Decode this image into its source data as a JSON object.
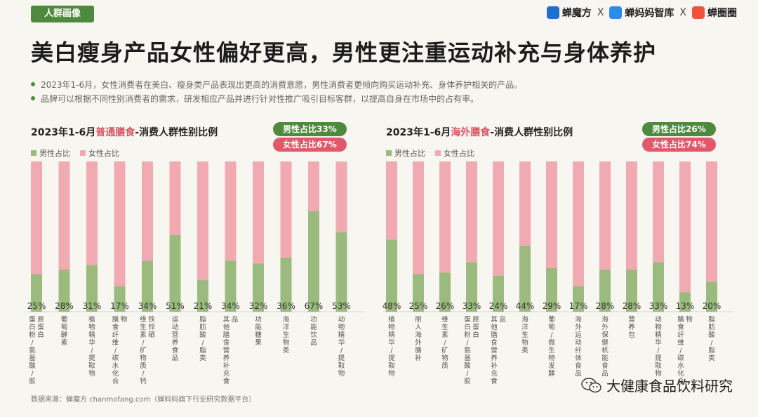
{
  "tag": "人群画像",
  "brands": [
    "蝉魔方",
    "蝉妈妈智库",
    "蝉圈圈"
  ],
  "brand_sep": "X",
  "title": "美白瘦身产品女性偏好更高，男性更注重运动补充与身体养护",
  "bullets": [
    "2023年1-6月，女性消费者在美白、瘦身类产品表现出更高的消费意愿，男性消费者更倾向购买运动补充、身体养护相关的产品。",
    "品牌可以根据不同性别消费者的需求，研发相应产品并进行针对性推广吸引目标客群，以提高自身在市场中的占有率。"
  ],
  "source": "数据来源：蝉魔方 chanmofang.com（蝉妈妈旗下行业研究数据平台）",
  "watermark": "大健康食品饮料研究",
  "colors": {
    "male": "#9bba7d",
    "female": "#f2aab2",
    "accent": "#4e8a3d",
    "pink": "#e0586a"
  },
  "chart_data": [
    {
      "type": "bar",
      "stacked": true,
      "title_prefix": "2023年1-6月",
      "title_highlight": "普通膳食",
      "title_suffix": "-消费人群性别比例",
      "male_pill": "男性占比33%",
      "female_pill": "女性占比67%",
      "legend": [
        "男性占比",
        "女性占比"
      ],
      "categories": [
        "蛋白粉/氨基酸/胶原蛋白",
        "葡萄酵素",
        "植物精华/提取物",
        "膳食纤维/碳水化合物",
        "维生素/矿物质/钙铁锌硒",
        "运动营养食品",
        "脂肪酸/脂类",
        "其他膳食营养补充食品",
        "功能糖果",
        "海洋生物类",
        "功能饮品",
        "动物精华/提取物"
      ],
      "series": [
        {
          "name": "男性占比",
          "values": [
            25,
            28,
            31,
            17,
            34,
            51,
            21,
            34,
            32,
            36,
            67,
            53
          ]
        },
        {
          "name": "女性占比",
          "values": [
            75,
            72,
            69,
            83,
            66,
            49,
            79,
            66,
            68,
            64,
            33,
            47
          ]
        }
      ],
      "labels": [
        "25%",
        "28%",
        "31%",
        "17%",
        "34%",
        "51%",
        "21%",
        "34%",
        "32%",
        "36%",
        "67%",
        "53%"
      ],
      "ylim": [
        0,
        100
      ]
    },
    {
      "type": "bar",
      "stacked": true,
      "title_prefix": "2023年1-6月",
      "title_highlight": "海外膳食",
      "title_suffix": "-消费人群性别比例",
      "male_pill": "男性占比26%",
      "female_pill": "女性占比74%",
      "legend": [
        "男性占比",
        "女性占比"
      ],
      "categories": [
        "植物精华/提取物",
        "丽人海外膳补",
        "维生素/矿物质",
        "蛋白粉/氨基酸/胶原蛋白",
        "其他膳食营养补充食品",
        "海洋生物类",
        "葡萄/微生物发酵",
        "海外运动纤体食品",
        "海外保健机能食品",
        "营养包",
        "动物精华/提取物",
        "膳食纤维/碳水化合物",
        "脂肪酸/脂类"
      ],
      "series": [
        {
          "name": "男性占比",
          "values": [
            48,
            25,
            26,
            33,
            24,
            44,
            29,
            17,
            28,
            28,
            33,
            13,
            20
          ]
        },
        {
          "name": "女性占比",
          "values": [
            52,
            75,
            74,
            67,
            76,
            56,
            71,
            83,
            72,
            72,
            67,
            87,
            80
          ]
        }
      ],
      "labels": [
        "48%",
        "25%",
        "26%",
        "33%",
        "24%",
        "44%",
        "29%",
        "17%",
        "28%",
        "28%",
        "33%",
        "13%",
        "20%"
      ],
      "ylim": [
        0,
        100
      ]
    }
  ]
}
